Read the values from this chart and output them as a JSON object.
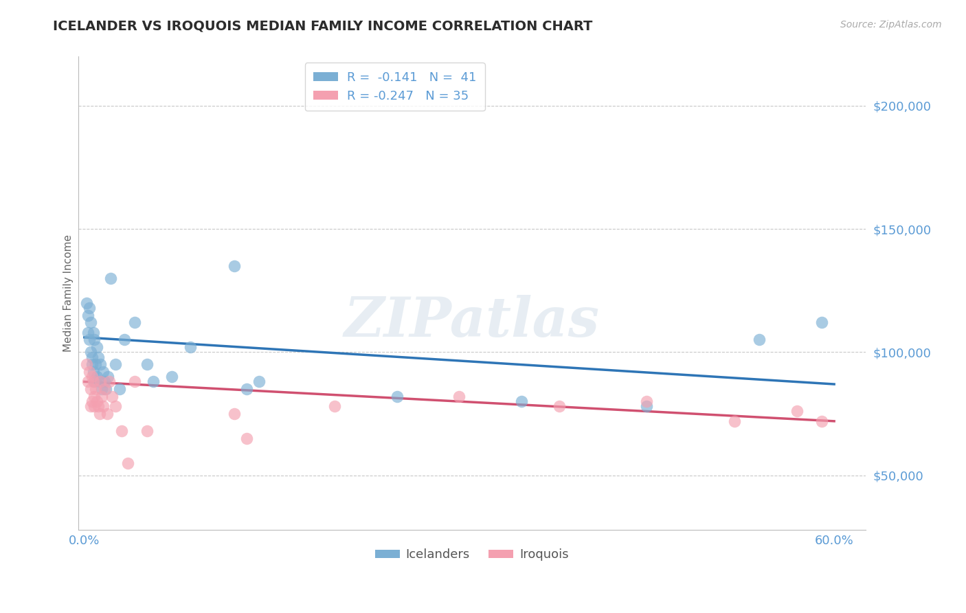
{
  "title": "ICELANDER VS IROQUOIS MEDIAN FAMILY INCOME CORRELATION CHART",
  "source": "Source: ZipAtlas.com",
  "ylabel": "Median Family Income",
  "yticks": [
    50000,
    100000,
    150000,
    200000
  ],
  "ytick_labels": [
    "$50,000",
    "$100,000",
    "$150,000",
    "$200,000"
  ],
  "ylim": [
    28000,
    220000
  ],
  "xlim": [
    -0.005,
    0.625
  ],
  "watermark": "ZIPatlas",
  "legend_blue_label": "R =  -0.141   N =  41",
  "legend_pink_label": "R = -0.247   N = 35",
  "blue_scatter": "#7BAFD4",
  "pink_scatter": "#F4A0B0",
  "line_blue": "#2E75B6",
  "line_pink": "#D05070",
  "grid_color": "#C8C8C8",
  "title_color": "#2C2C2C",
  "tick_color": "#5B9BD5",
  "icelanders_x": [
    0.002,
    0.003,
    0.003,
    0.004,
    0.004,
    0.005,
    0.005,
    0.006,
    0.006,
    0.007,
    0.007,
    0.008,
    0.008,
    0.009,
    0.01,
    0.01,
    0.011,
    0.012,
    0.013,
    0.014,
    0.015,
    0.016,
    0.017,
    0.019,
    0.021,
    0.025,
    0.028,
    0.032,
    0.04,
    0.05,
    0.055,
    0.07,
    0.085,
    0.12,
    0.13,
    0.14,
    0.25,
    0.35,
    0.45,
    0.54,
    0.59
  ],
  "icelanders_y": [
    120000,
    115000,
    108000,
    118000,
    105000,
    112000,
    100000,
    98000,
    95000,
    108000,
    92000,
    105000,
    88000,
    95000,
    102000,
    90000,
    98000,
    88000,
    95000,
    85000,
    92000,
    88000,
    85000,
    90000,
    130000,
    95000,
    85000,
    105000,
    112000,
    95000,
    88000,
    90000,
    102000,
    135000,
    85000,
    88000,
    82000,
    80000,
    78000,
    105000,
    112000
  ],
  "iroquois_x": [
    0.002,
    0.003,
    0.004,
    0.005,
    0.005,
    0.006,
    0.006,
    0.007,
    0.008,
    0.008,
    0.009,
    0.01,
    0.011,
    0.012,
    0.013,
    0.014,
    0.015,
    0.016,
    0.018,
    0.02,
    0.022,
    0.025,
    0.03,
    0.035,
    0.04,
    0.05,
    0.12,
    0.13,
    0.2,
    0.3,
    0.38,
    0.45,
    0.52,
    0.57,
    0.59
  ],
  "iroquois_y": [
    95000,
    88000,
    92000,
    85000,
    78000,
    90000,
    80000,
    88000,
    82000,
    78000,
    85000,
    80000,
    78000,
    75000,
    88000,
    82000,
    78000,
    85000,
    75000,
    88000,
    82000,
    78000,
    68000,
    55000,
    88000,
    68000,
    75000,
    65000,
    78000,
    82000,
    78000,
    80000,
    72000,
    76000,
    72000
  ],
  "blue_line_x0": 0.0,
  "blue_line_y0": 106000,
  "blue_line_x1": 0.6,
  "blue_line_y1": 87000,
  "pink_line_x0": 0.0,
  "pink_line_y0": 88000,
  "pink_line_x1": 0.6,
  "pink_line_y1": 72000
}
